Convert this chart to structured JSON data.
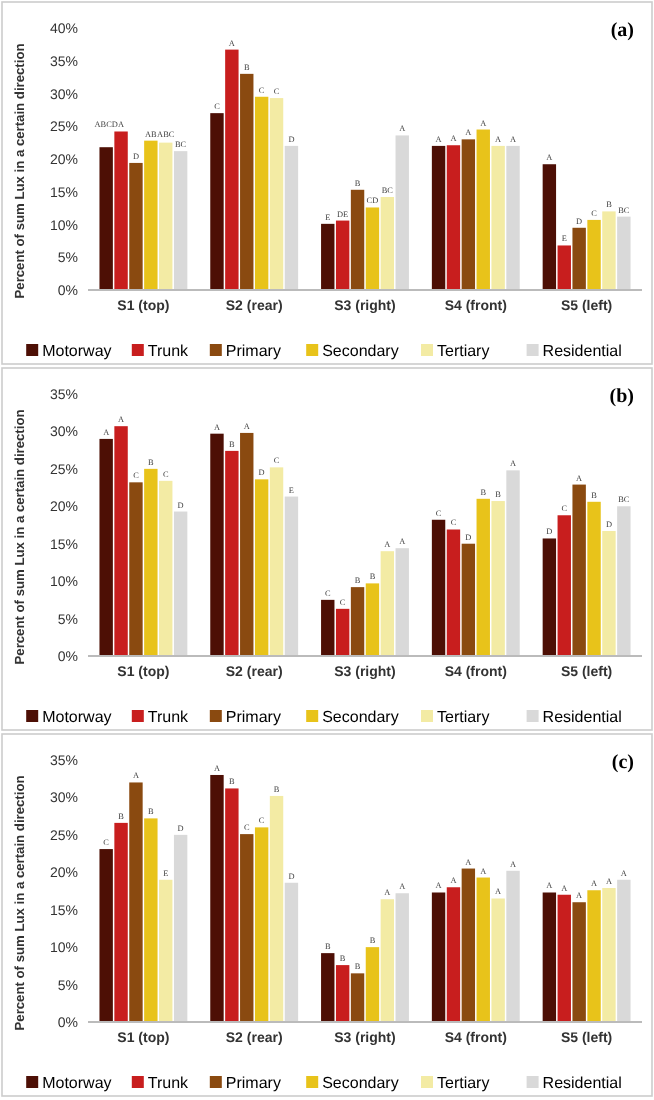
{
  "chart_data": [
    {
      "type": "bar",
      "title": "(a)",
      "ylabel": "Percent of sum Lux in a certain direction",
      "categories": [
        "S1 (top)",
        "S2 (rear)",
        "S3 (right)",
        "S4 (front)",
        "S5 (left)"
      ],
      "ylim": [
        0,
        40
      ],
      "yticks": [
        {
          "value": 0,
          "label": "0%"
        },
        {
          "value": 5,
          "label": "5%"
        },
        {
          "value": 10,
          "label": "10%"
        },
        {
          "value": 15,
          "label": "15%"
        },
        {
          "value": 20,
          "label": "20%"
        },
        {
          "value": 25,
          "label": "25%"
        },
        {
          "value": 30,
          "label": "30%"
        },
        {
          "value": 35,
          "label": "35%"
        },
        {
          "value": 40,
          "label": "40%"
        }
      ],
      "grid": false,
      "legend": "bottom",
      "series": [
        {
          "name": "Motorway",
          "color": "#4d0f05",
          "values": [
            21.8,
            27,
            10.1,
            22,
            19.2
          ],
          "value_labels": [
            "ABCD",
            "C",
            "E",
            "A",
            "A"
          ]
        },
        {
          "name": "Trunk",
          "color": "#c81e1e",
          "values": [
            24.2,
            36.7,
            10.6,
            22.1,
            6.8
          ],
          "value_labels": [
            "A",
            "A",
            "DE",
            "A",
            "E"
          ]
        },
        {
          "name": "Primary",
          "color": "#8a4a10",
          "values": [
            19.4,
            33,
            15.3,
            23,
            9.5
          ],
          "value_labels": [
            "D",
            "B",
            "B",
            "A",
            "D"
          ]
        },
        {
          "name": "Secondary",
          "color": "#e8c31a",
          "values": [
            22.8,
            29.5,
            12.6,
            24.5,
            10.7
          ],
          "value_labels": [
            "AB",
            "C",
            "CD",
            "A",
            "C"
          ]
        },
        {
          "name": "Tertiary",
          "color": "#f3eba4",
          "values": [
            22.5,
            29.3,
            14.2,
            22,
            12
          ],
          "value_labels": [
            "ABC",
            "C",
            "BC",
            "A",
            "B"
          ]
        },
        {
          "name": "Residential",
          "color": "#d9d9d9",
          "values": [
            21.2,
            22,
            23.6,
            22,
            11.2
          ],
          "value_labels": [
            "BC",
            "D",
            "A",
            "A",
            "BC"
          ]
        }
      ]
    },
    {
      "type": "bar",
      "title": "(b)",
      "ylabel": "Percent of sum Lux in a certain direction",
      "categories": [
        "S1 (top)",
        "S2 (rear)",
        "S3 (right)",
        "S4 (front)",
        "S5 (left)"
      ],
      "ylim": [
        0,
        35
      ],
      "yticks": [
        {
          "value": 0,
          "label": "0%"
        },
        {
          "value": 5,
          "label": "5%"
        },
        {
          "value": 10,
          "label": "10%"
        },
        {
          "value": 15,
          "label": "15%"
        },
        {
          "value": 20,
          "label": "20%"
        },
        {
          "value": 25,
          "label": "25%"
        },
        {
          "value": 30,
          "label": "30%"
        },
        {
          "value": 35,
          "label": "35%"
        }
      ],
      "grid": false,
      "legend": "bottom",
      "series": [
        {
          "name": "Motorway",
          "color": "#4d0f05",
          "values": [
            29,
            29.7,
            7.5,
            18.2,
            15.7
          ],
          "value_labels": [
            "A",
            "A",
            "C",
            "C",
            "D"
          ]
        },
        {
          "name": "Trunk",
          "color": "#c81e1e",
          "values": [
            30.7,
            27.4,
            6.3,
            16.9,
            18.8
          ],
          "value_labels": [
            "A",
            "B",
            "C",
            "C",
            "C"
          ]
        },
        {
          "name": "Primary",
          "color": "#8a4a10",
          "values": [
            23.2,
            29.8,
            9.2,
            15,
            22.9
          ],
          "value_labels": [
            "C",
            "A",
            "B",
            "D",
            "A"
          ]
        },
        {
          "name": "Secondary",
          "color": "#e8c31a",
          "values": [
            25,
            23.6,
            9.7,
            21,
            20.6
          ],
          "value_labels": [
            "B",
            "D",
            "B",
            "B",
            "B"
          ]
        },
        {
          "name": "Tertiary",
          "color": "#f3eba4",
          "values": [
            23.4,
            25.2,
            14,
            20.7,
            16.7
          ],
          "value_labels": [
            "C",
            "C",
            "A",
            "B",
            "D"
          ]
        },
        {
          "name": "Residential",
          "color": "#d9d9d9",
          "values": [
            19.3,
            21.3,
            14.4,
            24.8,
            20
          ],
          "value_labels": [
            "D",
            "E",
            "A",
            "A",
            "BC"
          ]
        }
      ]
    },
    {
      "type": "bar",
      "title": "(c)",
      "ylabel": "Percent of sum Lux in a certain direction",
      "categories": [
        "S1 (top)",
        "S2 (rear)",
        "S3 (right)",
        "S4 (front)",
        "S5 (left)"
      ],
      "ylim": [
        0,
        35
      ],
      "yticks": [
        {
          "value": 0,
          "label": "0%"
        },
        {
          "value": 5,
          "label": "5%"
        },
        {
          "value": 10,
          "label": "10%"
        },
        {
          "value": 15,
          "label": "15%"
        },
        {
          "value": 20,
          "label": "20%"
        },
        {
          "value": 25,
          "label": "25%"
        },
        {
          "value": 30,
          "label": "30%"
        },
        {
          "value": 35,
          "label": "35%"
        }
      ],
      "grid": false,
      "legend": "bottom",
      "series": [
        {
          "name": "Motorway",
          "color": "#4d0f05",
          "values": [
            23.1,
            33,
            9.2,
            17.3,
            17.3
          ],
          "value_labels": [
            "C",
            "A",
            "B",
            "A",
            "A"
          ]
        },
        {
          "name": "Trunk",
          "color": "#c81e1e",
          "values": [
            26.6,
            31.2,
            7.6,
            18,
            17
          ],
          "value_labels": [
            "B",
            "B",
            "B",
            "A",
            "A"
          ]
        },
        {
          "name": "Primary",
          "color": "#8a4a10",
          "values": [
            32,
            25.1,
            6.5,
            20.5,
            16
          ],
          "value_labels": [
            "A",
            "C",
            "B",
            "A",
            "A"
          ]
        },
        {
          "name": "Secondary",
          "color": "#e8c31a",
          "values": [
            27.2,
            26,
            10,
            19.3,
            17.6
          ],
          "value_labels": [
            "B",
            "C",
            "B",
            "A",
            "A"
          ]
        },
        {
          "name": "Tertiary",
          "color": "#f3eba4",
          "values": [
            19,
            30.2,
            16.4,
            16.5,
            17.9
          ],
          "value_labels": [
            "E",
            "B",
            "A",
            "A",
            "A"
          ]
        },
        {
          "name": "Residential",
          "color": "#d9d9d9",
          "values": [
            25,
            18.6,
            17.2,
            20.2,
            19
          ],
          "value_labels": [
            "D",
            "D",
            "A",
            "A",
            "A"
          ]
        }
      ]
    }
  ]
}
